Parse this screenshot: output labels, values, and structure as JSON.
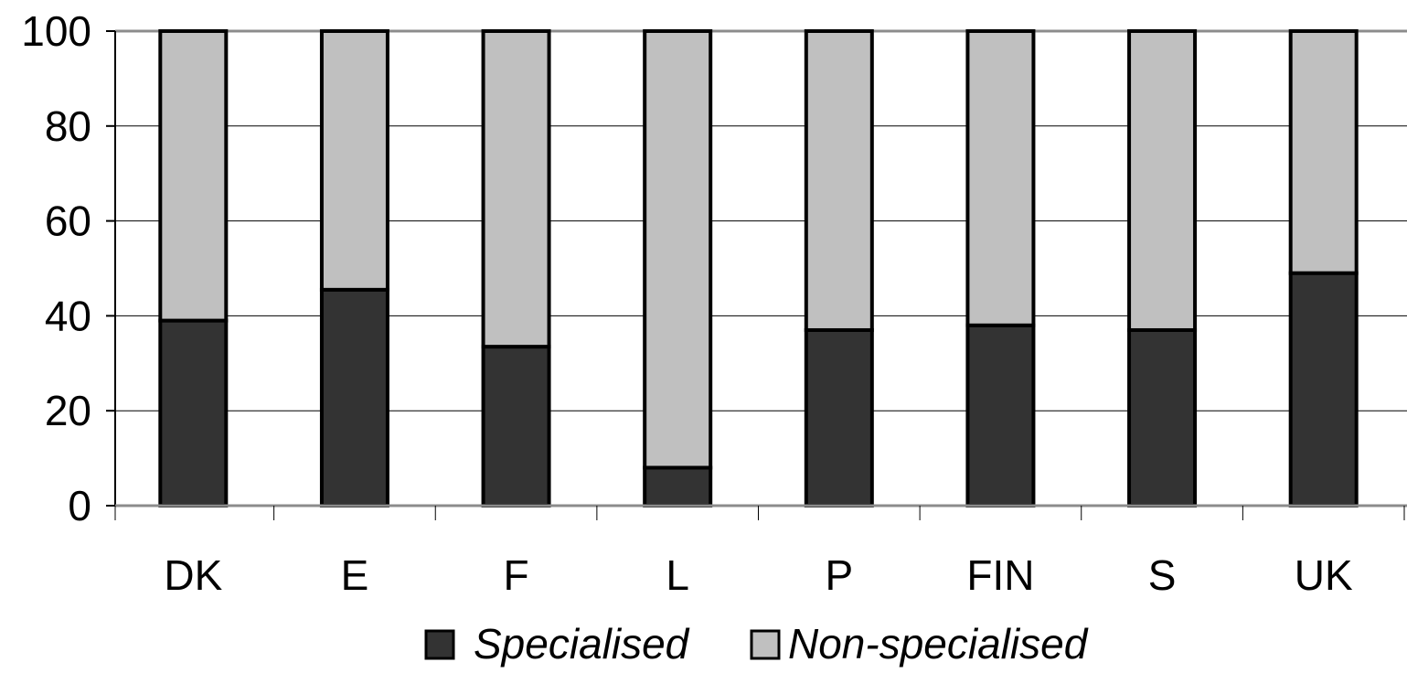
{
  "chart_data": {
    "type": "bar",
    "stacked": true,
    "categories": [
      "DK",
      "E",
      "F",
      "L",
      "P",
      "FIN",
      "S",
      "UK"
    ],
    "series": [
      {
        "name": "Specialised",
        "color": "#333333",
        "values": [
          39,
          45.5,
          33.5,
          8,
          37,
          38,
          37,
          49
        ]
      },
      {
        "name": "Non-specialised",
        "color": "#c0c0c0",
        "values": [
          61,
          54.5,
          66.5,
          92,
          63,
          62,
          63,
          51
        ]
      }
    ],
    "ylim": [
      0,
      100
    ],
    "yticks": [
      "0",
      "20",
      "40",
      "60",
      "80",
      "100"
    ],
    "grid": true,
    "legend_position": "bottom"
  }
}
